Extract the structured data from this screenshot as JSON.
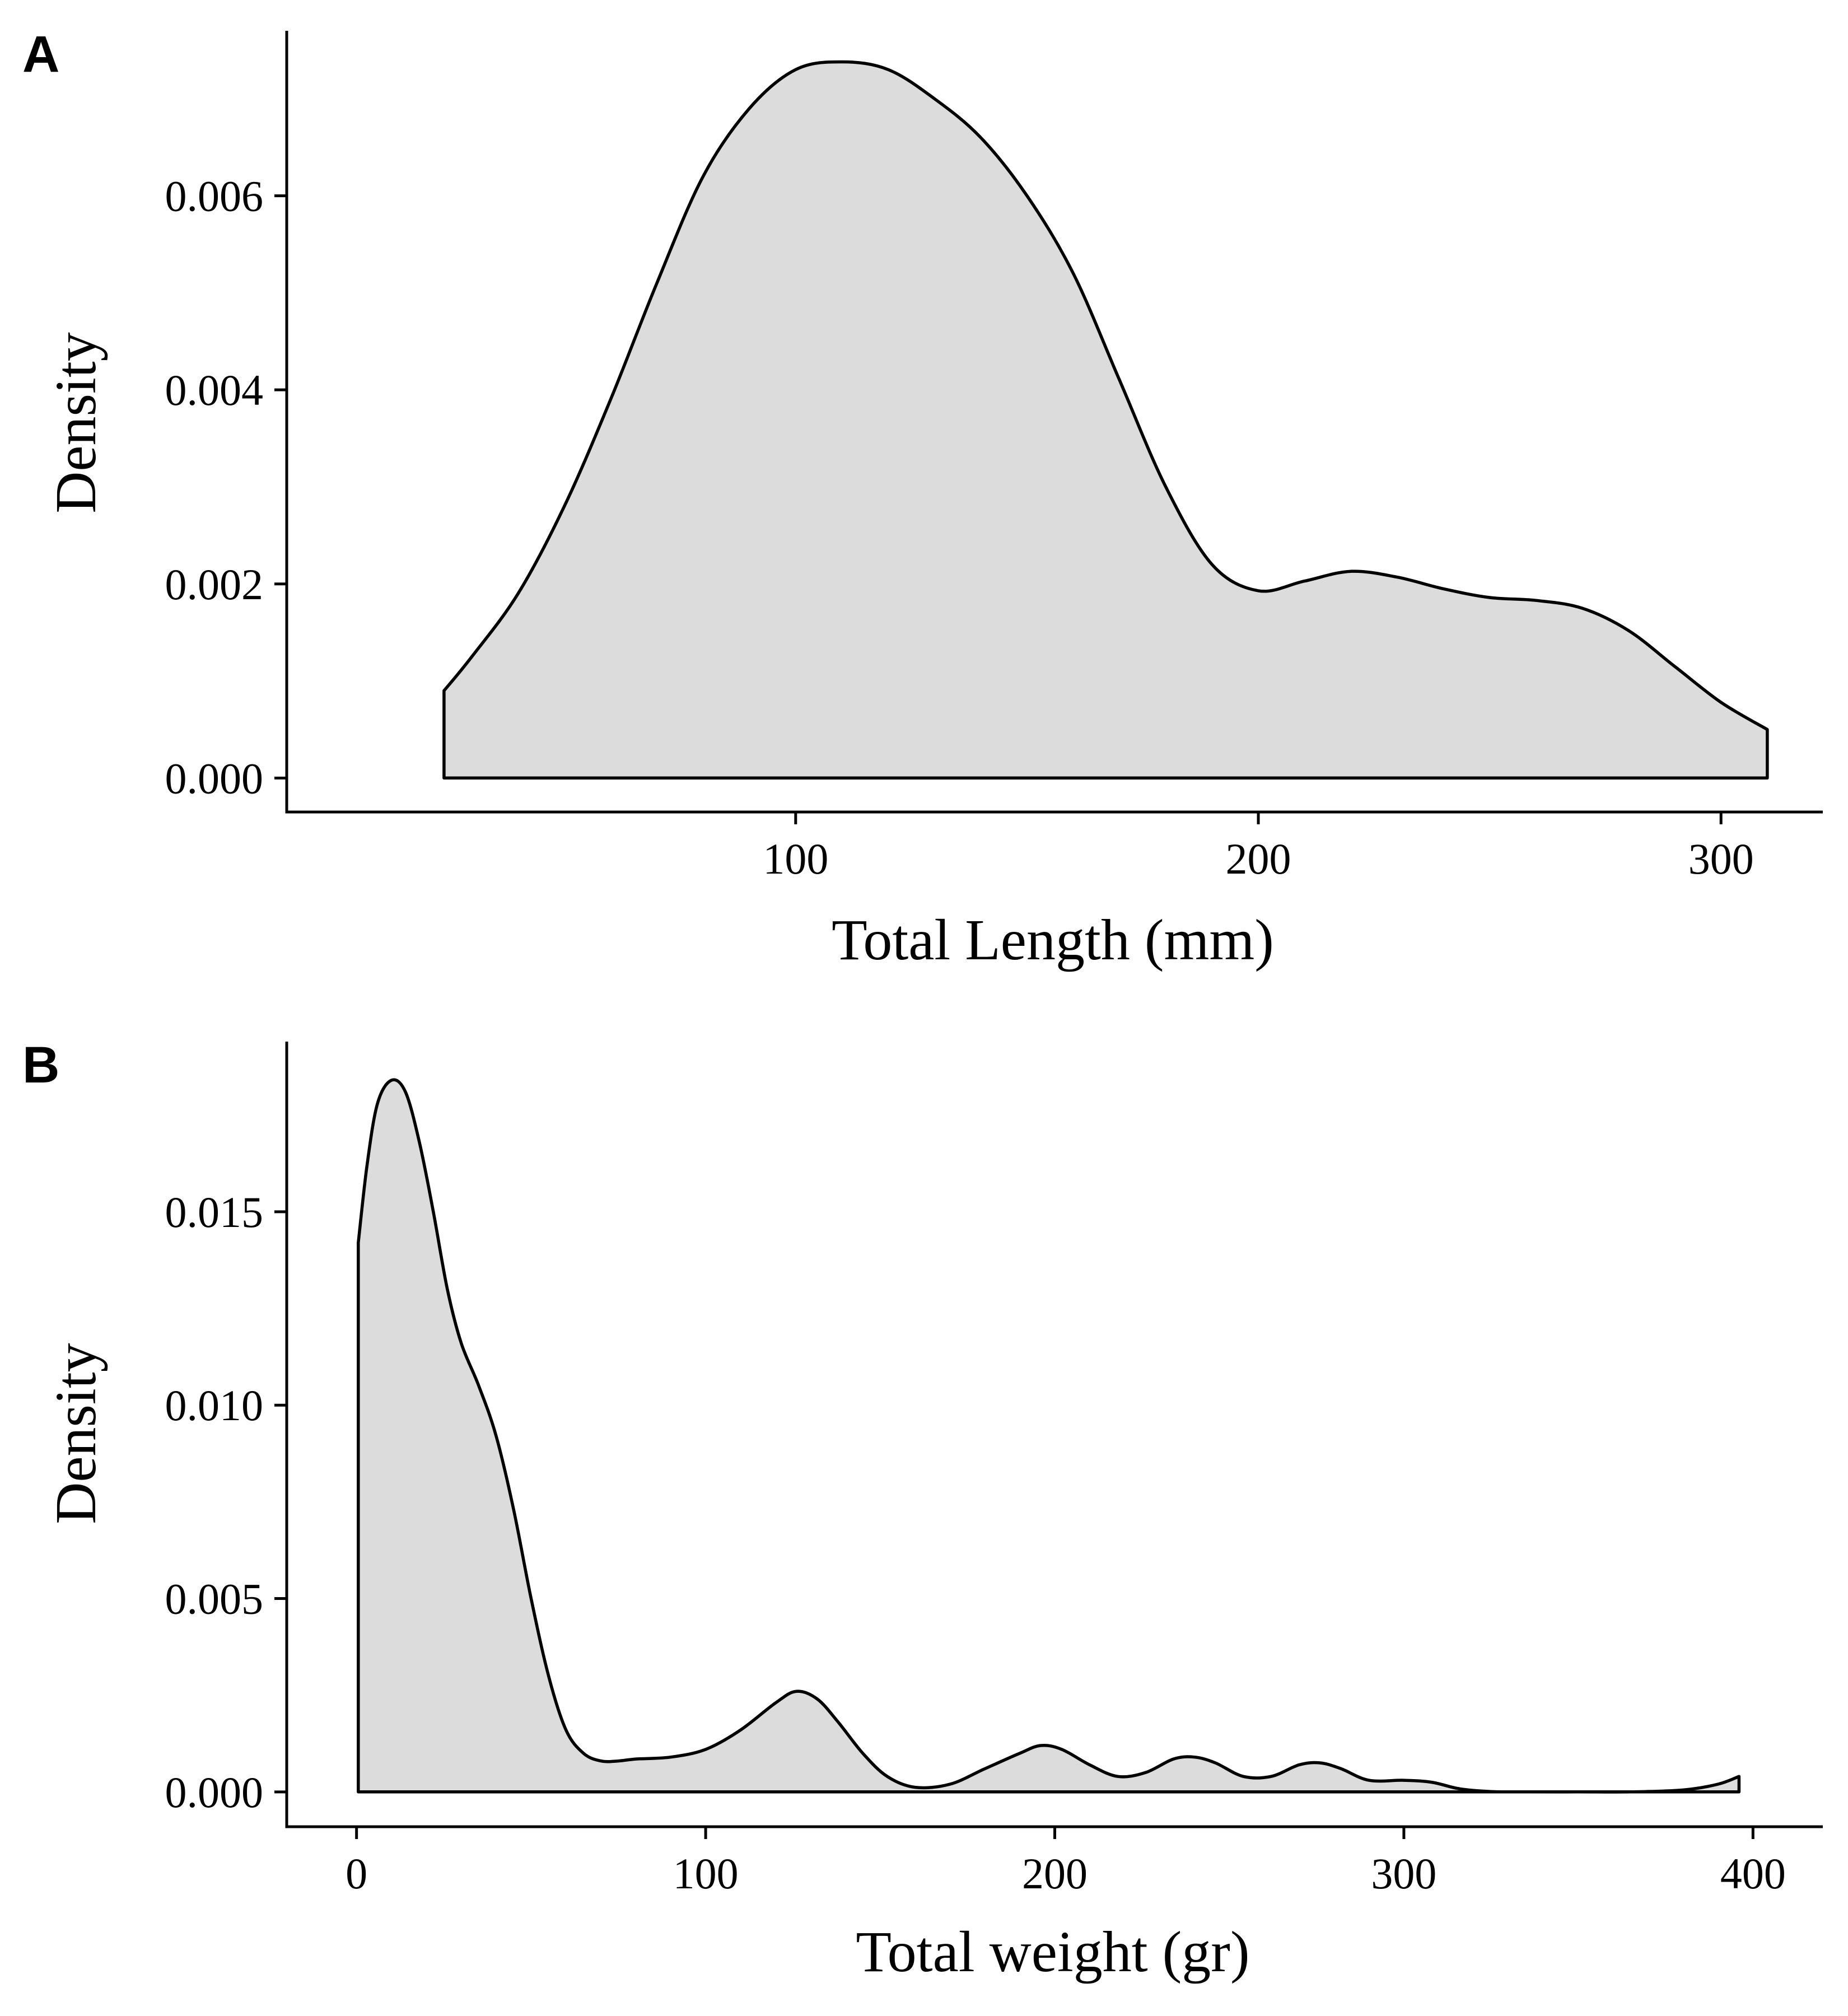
{
  "chart_data": [
    {
      "type": "area",
      "panel_label": "A",
      "xlabel": "Total Length (mm)",
      "ylabel": "Density",
      "xlim": [
        -10,
        322
      ],
      "ylim": [
        -0.00035,
        0.0077
      ],
      "x_ticks": [
        100,
        200,
        300
      ],
      "x_tick_labels": [
        "100",
        "200",
        "300"
      ],
      "y_ticks": [
        0,
        0.002,
        0.004,
        0.006
      ],
      "y_tick_labels": [
        "0.000",
        "0.002",
        "0.004",
        "0.006"
      ],
      "grid": false,
      "legend": "none",
      "fill_color": "#dcdcdc",
      "line_color": "#000000",
      "x": [
        24,
        30,
        40,
        50,
        60,
        70,
        80,
        90,
        100,
        110,
        120,
        130,
        140,
        150,
        160,
        170,
        180,
        190,
        200,
        210,
        220,
        230,
        240,
        250,
        260,
        270,
        280,
        290,
        300,
        310
      ],
      "y": [
        0.0009,
        0.00125,
        0.0019,
        0.0028,
        0.0039,
        0.0051,
        0.0062,
        0.0069,
        0.0073,
        0.00738,
        0.0073,
        0.007,
        0.0066,
        0.006,
        0.0052,
        0.0041,
        0.003,
        0.0022,
        0.00193,
        0.00203,
        0.00213,
        0.00207,
        0.00195,
        0.00186,
        0.00183,
        0.00175,
        0.00152,
        0.00115,
        0.00078,
        0.0005
      ]
    },
    {
      "type": "area",
      "panel_label": "B",
      "xlabel": "Total weight (gr)",
      "ylabel": "Density",
      "xlim": [
        -20,
        420
      ],
      "ylim": [
        -0.0009,
        0.0194
      ],
      "x_ticks": [
        0,
        100,
        200,
        300,
        400
      ],
      "x_tick_labels": [
        "0",
        "100",
        "200",
        "300",
        "400"
      ],
      "y_ticks": [
        0,
        0.005,
        0.01,
        0.015
      ],
      "y_tick_labels": [
        "0.000",
        "0.005",
        "0.010",
        "0.015"
      ],
      "grid": false,
      "legend": "none",
      "fill_color": "#dcdcdc",
      "line_color": "#000000",
      "x": [
        0.5,
        3,
        6,
        10,
        14,
        18,
        22,
        26,
        30,
        35,
        40,
        45,
        50,
        55,
        60,
        65,
        70,
        75,
        80,
        90,
        100,
        110,
        120,
        126,
        132,
        138,
        145,
        152,
        160,
        170,
        180,
        190,
        196,
        202,
        210,
        218,
        226,
        234,
        240,
        246,
        254,
        262,
        270,
        276,
        282,
        290,
        300,
        308,
        316,
        325,
        335,
        350,
        365,
        380,
        390,
        396
      ],
      "y": [
        0.0142,
        0.0162,
        0.0178,
        0.0184,
        0.0181,
        0.0168,
        0.015,
        0.013,
        0.0116,
        0.0105,
        0.0092,
        0.0073,
        0.005,
        0.003,
        0.0016,
        0.001,
        0.0008,
        0.0008,
        0.00085,
        0.0009,
        0.0011,
        0.0016,
        0.0023,
        0.0026,
        0.0024,
        0.0018,
        0.001,
        0.0004,
        0.00012,
        0.0002,
        0.0006,
        0.001,
        0.0012,
        0.0011,
        0.0007,
        0.0004,
        0.0005,
        0.00085,
        0.0009,
        0.00075,
        0.0004,
        0.0004,
        0.0007,
        0.00075,
        0.0006,
        0.0003,
        0.0003,
        0.00025,
        8e-05,
        1e-05,
        0.0,
        0.0,
        0.0,
        5e-05,
        0.0002,
        0.0004
      ]
    }
  ]
}
